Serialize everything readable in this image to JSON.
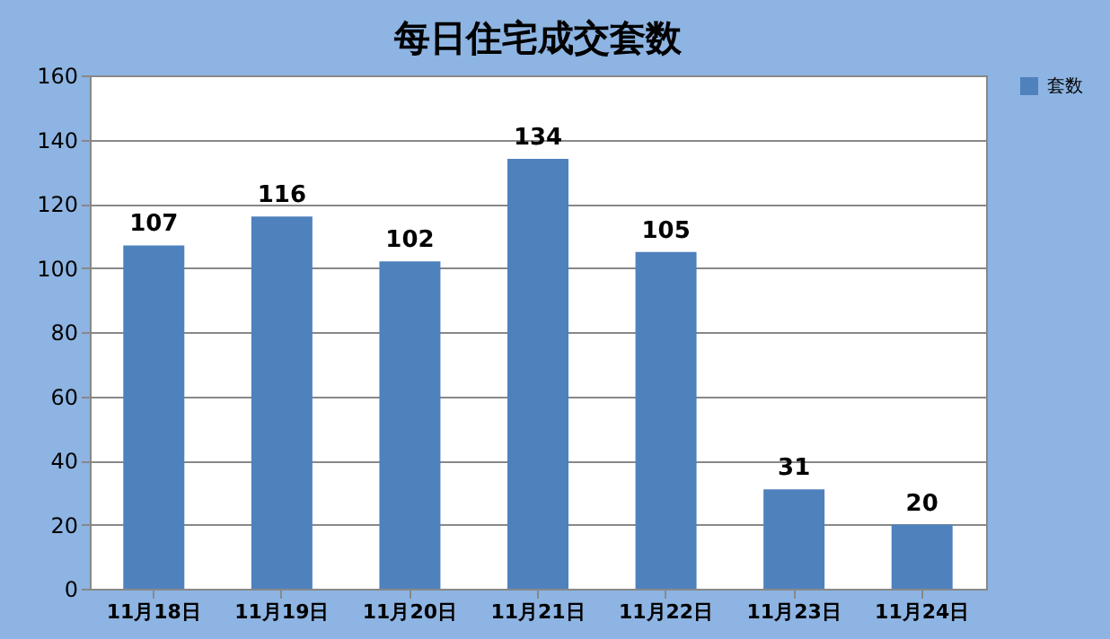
{
  "chart_data": {
    "type": "bar",
    "title": "每日住宅成交套数",
    "categories": [
      "11月18日",
      "11月19日",
      "11月20日",
      "11月21日",
      "11月22日",
      "11月23日",
      "11月24日"
    ],
    "series": [
      {
        "name": "套数",
        "color": "#4f81bd",
        "values": [
          107,
          116,
          102,
          134,
          105,
          31,
          20
        ]
      }
    ],
    "ylim": [
      0,
      160
    ],
    "yticks": [
      0,
      20,
      40,
      60,
      80,
      100,
      120,
      140,
      160
    ],
    "grid": "y",
    "legend": "right",
    "data_labels": true
  }
}
